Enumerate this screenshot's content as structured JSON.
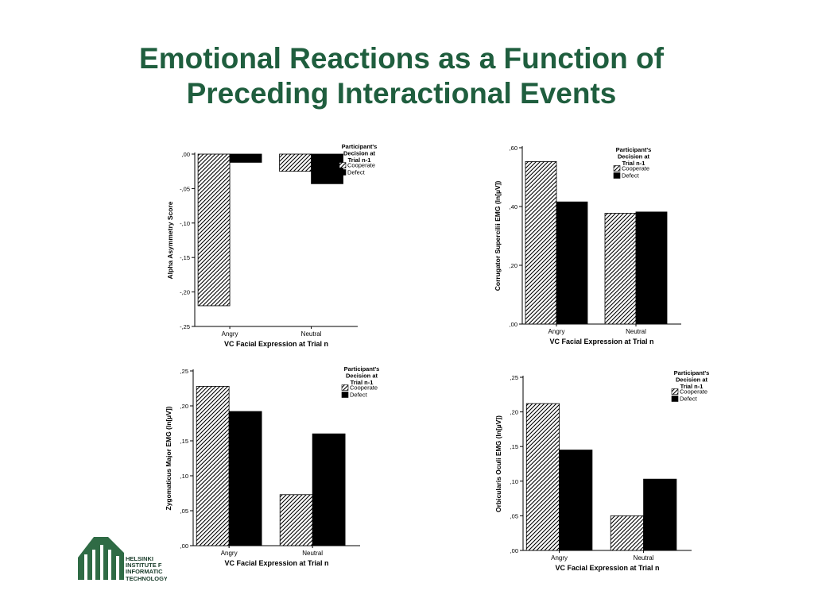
{
  "title": {
    "line1": "Emotional Reactions as a Function of",
    "line2": "Preceding Interactional Events"
  },
  "colors": {
    "title": "#1f5e3e",
    "cooperate_fill": "hatch-diagonal",
    "defect_fill": "#000000",
    "logo": "#2f6b45"
  },
  "logo": {
    "icon": "hiit-logo-icon",
    "lines": [
      "HELSINKI",
      "INSTITUTE F",
      "INFORMATIC",
      "TECHNOLOGY"
    ]
  },
  "chart_data": [
    {
      "type": "bar",
      "position": "top-left",
      "categories": [
        "Angry",
        "Neutral"
      ],
      "series": [
        {
          "name": "Cooperate",
          "values": [
            -0.22,
            -0.025
          ]
        },
        {
          "name": "Defect",
          "values": [
            -0.012,
            -0.043
          ]
        }
      ],
      "xlabel": "VC Facial Expression at Trial n",
      "ylabel": "Alpha Asymmetry Score",
      "ylim": [
        -0.25,
        0.0
      ],
      "yticks": [
        ",00",
        "-,05",
        "-,10",
        "-,15",
        "-,20",
        "-,25"
      ],
      "legend": {
        "title": [
          "Participant's",
          "Decision at",
          "Trial n-1"
        ],
        "placement": "top-right"
      }
    },
    {
      "type": "bar",
      "position": "top-right",
      "categories": [
        "Angry",
        "Neutral"
      ],
      "series": [
        {
          "name": "Cooperate",
          "values": [
            0.645,
            0.44
          ]
        },
        {
          "name": "Defect",
          "values": [
            0.485,
            0.445
          ]
        }
      ],
      "xlabel": "VC Facial Expression at Trial n",
      "ylabel": "Corrugator Supercilii EMG (ln[µV])",
      "ylim": [
        0.0,
        0.7
      ],
      "yticks": [
        ",00",
        ",20",
        ",40",
        ",60"
      ],
      "legend": {
        "title": [
          "Participant's",
          "Decision at",
          "Trial n-1"
        ],
        "placement": "top-right"
      }
    },
    {
      "type": "bar",
      "position": "bottom-left",
      "categories": [
        "Angry",
        "Neutral"
      ],
      "series": [
        {
          "name": "Cooperate",
          "values": [
            0.228,
            0.073
          ]
        },
        {
          "name": "Defect",
          "values": [
            0.192,
            0.16
          ]
        }
      ],
      "xlabel": "VC Facial Expression at Trial n",
      "ylabel": "Zygomaticus Major EMG (ln[µV])",
      "ylim": [
        0.0,
        0.25
      ],
      "yticks": [
        ",00",
        ",05",
        ",10",
        ",15",
        ",20",
        ",25"
      ],
      "legend": {
        "title": [
          "Participant's",
          "Decision at",
          "Trial n-1"
        ],
        "placement": "top-right"
      }
    },
    {
      "type": "bar",
      "position": "bottom-right",
      "categories": [
        "Angry",
        "Neutral"
      ],
      "series": [
        {
          "name": "Cooperate",
          "values": [
            0.212,
            0.05
          ]
        },
        {
          "name": "Defect",
          "values": [
            0.145,
            0.103
          ]
        }
      ],
      "xlabel": "VC Facial Expression at Trial n",
      "ylabel": "Orbicularis Oculi EMG (ln[µV])",
      "ylim": [
        0.0,
        0.25
      ],
      "yticks": [
        ",00",
        ",05",
        ",10",
        ",15",
        ",20",
        ",25"
      ],
      "legend": {
        "title": [
          "Participant's",
          "Decision at",
          "Trial n-1"
        ],
        "placement": "top-right"
      }
    }
  ]
}
